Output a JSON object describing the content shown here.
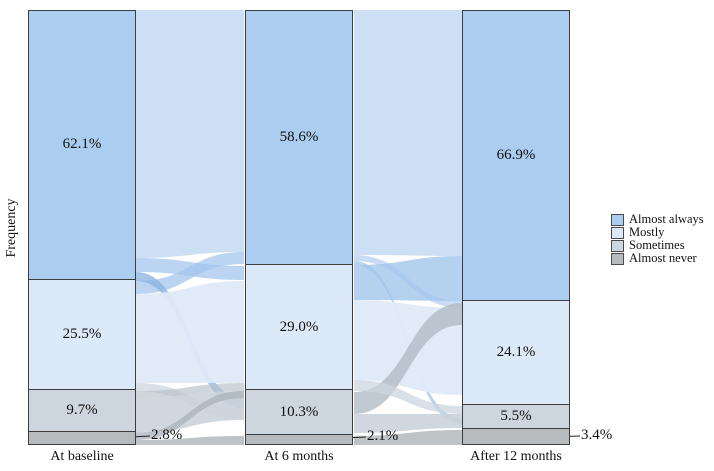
{
  "chart_data": {
    "type": "alluvial",
    "title": "",
    "ylabel": "Frequency",
    "ylim": [
      0,
      100
    ],
    "grid": false,
    "categories": [
      "At baseline",
      "At 6 months",
      "After 12 months"
    ],
    "legend": {
      "position": "right",
      "entries": [
        "Almost always",
        "Mostly",
        "Sometimes",
        "Almost never"
      ]
    },
    "colors": [
      "#abcdf0",
      "#dce9f8",
      "#cdd6de",
      "#b8bbbd"
    ],
    "border_color": "#3d3d3d",
    "series": [
      {
        "name": "Almost always",
        "values": [
          62.1,
          58.6,
          66.9
        ]
      },
      {
        "name": "Mostly",
        "values": [
          25.5,
          29.0,
          24.1
        ]
      },
      {
        "name": "Sometimes",
        "values": [
          9.7,
          10.3,
          5.5
        ]
      },
      {
        "name": "Almost never",
        "values": [
          2.8,
          2.1,
          3.4
        ]
      }
    ],
    "outside_labels": [
      "2.8%",
      "2.1%",
      "3.4%"
    ]
  }
}
